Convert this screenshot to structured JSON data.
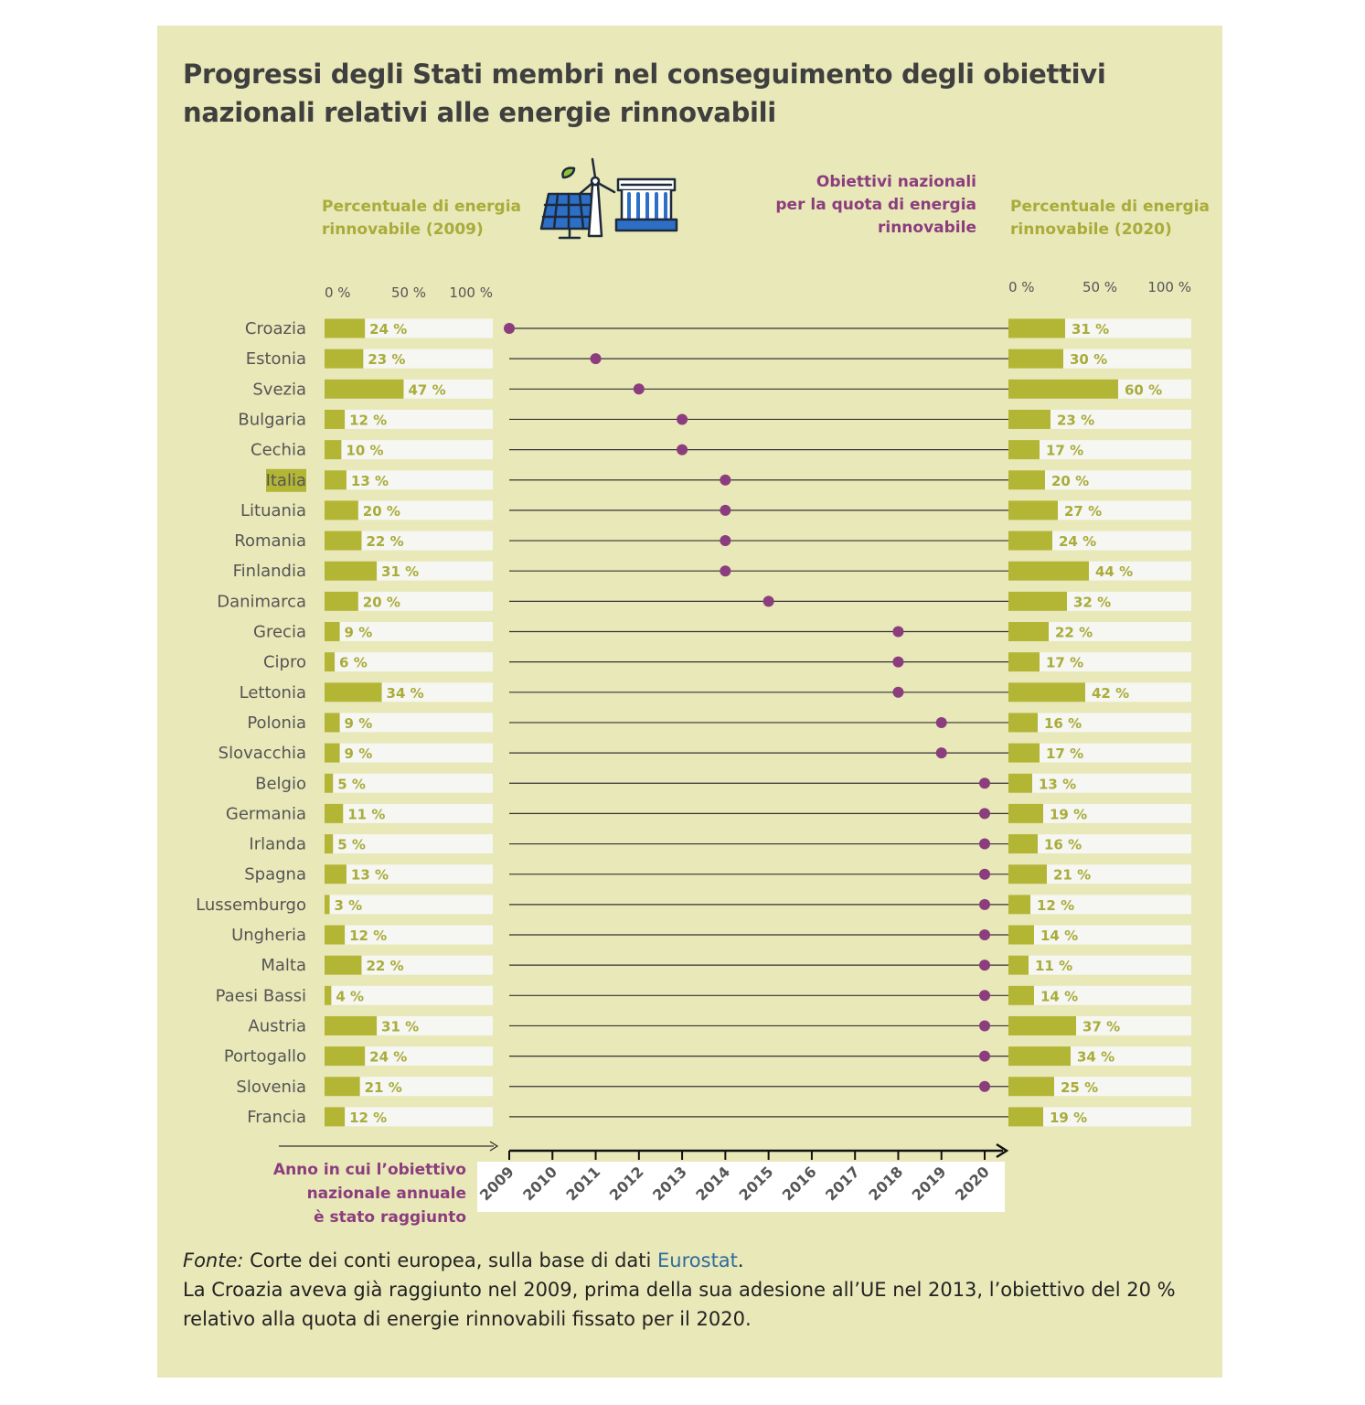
{
  "title": "Progressi degli Stati membri nel conseguimento degli obiettivi nazionali relativi alle energie rinnovabili",
  "headers": {
    "left": [
      "Percentuale di energia",
      "rinnovabile (2009)"
    ],
    "middle": [
      "Obiettivi nazionali",
      "per la quota di energia",
      "rinnovabile"
    ],
    "right": [
      "Percentuale di energia",
      "rinnovabile (2020)"
    ]
  },
  "axis_caption": [
    "Anno in cui l’obiettivo",
    "nazionale annuale",
    "è stato raggiunto"
  ],
  "footer": {
    "source_label": "Fonte:",
    "source_text": " Corte dei conti europea, sulla base di dati ",
    "source_link": "Eurostat",
    "source_end": ".",
    "note": "La Croazia aveva già raggiunto nel 2009, prima della sua adesione all’UE nel 2013, l’obiettivo del 20 % relativo alla quota di energie rinnovabili fissato per il 2020."
  },
  "highlight_country": "Italia",
  "icon": "renewable-energy-icon",
  "colors": {
    "background": "#e9e8b8",
    "bar": "#b3b535",
    "bar_track": "#f6f6f2",
    "dot": "#8b3d7e",
    "bar_label": "#a9ac3a",
    "highlight": "#b3b535"
  },
  "chart_data": {
    "type": "bar",
    "categories": [
      "Croazia",
      "Estonia",
      "Svezia",
      "Bulgaria",
      "Cechia",
      "Italia",
      "Lituania",
      "Romania",
      "Finlandia",
      "Danimarca",
      "Grecia",
      "Cipro",
      "Lettonia",
      "Polonia",
      "Slovacchia",
      "Belgio",
      "Germania",
      "Irlanda",
      "Spagna",
      "Lussemburgo",
      "Ungheria",
      "Malta",
      "Paesi Bassi",
      "Austria",
      "Portogallo",
      "Slovenia",
      "Francia"
    ],
    "series": [
      {
        "name": "Percentuale di energia rinnovabile (2009)",
        "values": [
          24,
          23,
          47,
          12,
          10,
          13,
          20,
          22,
          31,
          20,
          9,
          6,
          34,
          9,
          9,
          5,
          11,
          5,
          13,
          3,
          12,
          22,
          4,
          31,
          24,
          21,
          12
        ]
      },
      {
        "name": "Percentuale di energia rinnovabile (2020)",
        "values": [
          31,
          30,
          60,
          23,
          17,
          20,
          27,
          24,
          44,
          32,
          22,
          17,
          42,
          16,
          17,
          13,
          19,
          16,
          21,
          12,
          14,
          11,
          14,
          37,
          34,
          25,
          19
        ]
      },
      {
        "name": "Obiettivi nazionali per la quota di energia rinnovabile",
        "values": [
          2009,
          2011,
          2012,
          2013,
          2013,
          2014,
          2014,
          2014,
          2014,
          2015,
          2018,
          2018,
          2018,
          2019,
          2019,
          2020,
          2020,
          2020,
          2020,
          2020,
          2020,
          2020,
          2020,
          2020,
          2020,
          2020,
          null
        ]
      }
    ],
    "value_suffix": " %",
    "percent_ticks": [
      "0 %",
      "50 %",
      "100 %"
    ],
    "percent_range": [
      0,
      100
    ],
    "years": [
      "2009",
      "2010",
      "2011",
      "2012",
      "2013",
      "2014",
      "2015",
      "2016",
      "2017",
      "2018",
      "2019",
      "2020"
    ],
    "year_range": [
      2009,
      2020
    ]
  }
}
